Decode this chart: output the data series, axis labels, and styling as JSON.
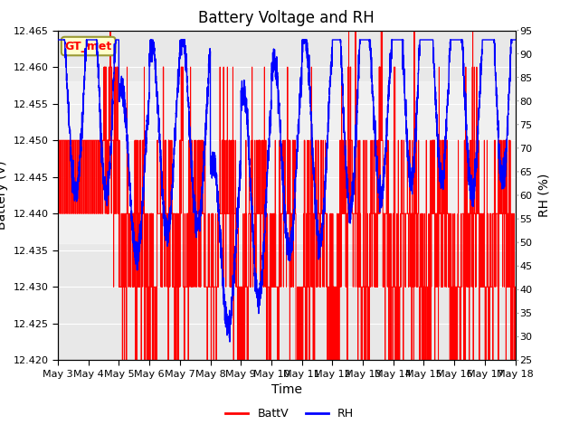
{
  "title": "Battery Voltage and RH",
  "xlabel": "Time",
  "ylabel_left": "Battery (V)",
  "ylabel_right": "RH (%)",
  "ylim_left": [
    12.42,
    12.465
  ],
  "ylim_right": [
    25,
    95
  ],
  "yticks_left": [
    12.42,
    12.425,
    12.43,
    12.435,
    12.44,
    12.445,
    12.45,
    12.455,
    12.46,
    12.465
  ],
  "yticks_right": [
    25,
    30,
    35,
    40,
    45,
    50,
    55,
    60,
    65,
    70,
    75,
    80,
    85,
    90,
    95
  ],
  "xtick_labels": [
    "May 3",
    "May 4",
    "May 5",
    "May 6",
    "May 7",
    "May 8",
    "May 9",
    "May 10",
    "May 11",
    "May 12",
    "May 13",
    "May 14",
    "May 15",
    "May 16",
    "May 17",
    "May 18"
  ],
  "n_days": 15,
  "legend_labels": [
    "BattV",
    "RH"
  ],
  "legend_colors": [
    "red",
    "blue"
  ],
  "label_box_text": "GT_met",
  "label_box_facecolor": "#ffffcc",
  "label_box_edgecolor": "#999933",
  "label_box_textcolor": "red",
  "batt_color": "red",
  "rh_color": "blue",
  "plot_bg_light": "#e8e8e8",
  "plot_bg_dark": "#d0d0d0",
  "grid_color": "white",
  "title_fontsize": 12,
  "axis_label_fontsize": 10,
  "tick_fontsize": 8,
  "legend_fontsize": 9,
  "figsize": [
    6.4,
    4.8
  ],
  "dpi": 100
}
